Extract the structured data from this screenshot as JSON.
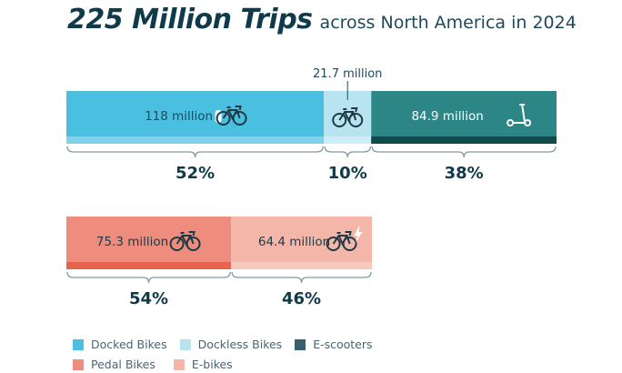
{
  "title": {
    "main": "225 Million Trips",
    "sub": "across North America in 2024"
  },
  "chart_data": {
    "type": "bar",
    "orientation": "horizontal-stacked",
    "groups": [
      {
        "segments": [
          {
            "name": "Docked Bikes",
            "label": "118 million",
            "value": 118,
            "percent": "52%",
            "color": "#4bbfe0",
            "strip": "#7fd2ea",
            "icon": "docked-bike-icon",
            "text_color": "#1d4a5a"
          },
          {
            "name": "Dockless Bikes",
            "label": "21.7 million",
            "value": 21.7,
            "percent": "10%",
            "color": "#b8e4f1",
            "strip": "#cdeef7",
            "icon": "bike-icon",
            "text_color": "#1d4a5a",
            "label_outside": true
          },
          {
            "name": "E-scooters",
            "label": "84.9 million",
            "value": 84.9,
            "percent": "38%",
            "color": "#2c8686",
            "strip": "#0e4b4b",
            "icon": "scooter-icon",
            "text_color": "#ffffff"
          }
        ]
      },
      {
        "segments": [
          {
            "name": "Pedal Bikes",
            "label": "75.3 million",
            "value": 75.3,
            "percent": "54%",
            "color": "#ee8c7e",
            "strip": "#e5634f",
            "icon": "bike-icon",
            "text_color": "#1d3a45"
          },
          {
            "name": "E-bikes",
            "label": "64.4 million",
            "value": 64.4,
            "percent": "46%",
            "color": "#f5b6aa",
            "strip": "#f7c8bf",
            "icon": "ebike-icon",
            "text_color": "#1d3a45"
          }
        ]
      }
    ],
    "legend": [
      [
        {
          "name": "Docked Bikes",
          "color": "#4bbfe0"
        },
        {
          "name": "Dockless Bikes",
          "color": "#b8e4f1"
        },
        {
          "name": "E-scooters",
          "color": "#36606c"
        }
      ],
      [
        {
          "name": "Pedal Bikes",
          "color": "#ee8c7e"
        },
        {
          "name": "E-bikes",
          "color": "#f5b6aa"
        }
      ]
    ],
    "legend_position": "bottom-left"
  }
}
